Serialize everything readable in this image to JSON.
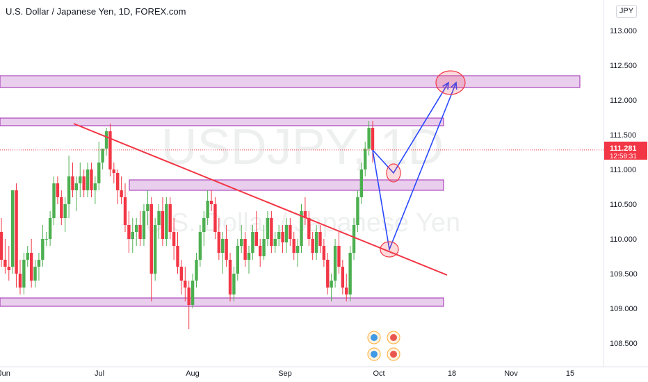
{
  "header": {
    "title": "U.S. Dollar / Japanese Yen, 1D, FOREX.com",
    "currency": "JPY"
  },
  "watermark": {
    "symbol": "USDJPY, 1D",
    "name": "U.S. Dollar / Japanese Yen"
  },
  "price_badge": {
    "price": "111.281",
    "countdown": "12:58:31",
    "color": "#f23645"
  },
  "colors": {
    "up": "#4caf50",
    "down": "#f23645",
    "zone_fill": "#e1bee7",
    "zone_border": "#9c27b0",
    "trendline": "#f23645",
    "projection": "#2948ff"
  },
  "chart_data": {
    "type": "candlestick",
    "title": "U.S. Dollar / Japanese Yen, 1D, FOREX.com",
    "y_ticks": [
      "113.000",
      "112.500",
      "112.000",
      "111.500",
      "111.000",
      "110.500",
      "110.000",
      "109.500",
      "109.000",
      "108.500"
    ],
    "x_ticks": [
      "Jun",
      "Jul",
      "Aug",
      "Sep",
      "Oct",
      "18",
      "Nov",
      "15"
    ],
    "ylim": [
      108.3,
      113.3
    ],
    "last_price": 111.281,
    "candles": [
      [
        110.1,
        110.3,
        109.6,
        109.7
      ],
      [
        109.7,
        110.0,
        109.5,
        109.6
      ],
      [
        109.6,
        109.9,
        109.4,
        109.55
      ],
      [
        109.6,
        110.7,
        109.5,
        110.7
      ],
      [
        110.7,
        110.8,
        109.3,
        109.5
      ],
      [
        109.5,
        109.7,
        109.2,
        109.3
      ],
      [
        109.3,
        109.8,
        109.2,
        109.7
      ],
      [
        109.7,
        109.9,
        109.6,
        109.8
      ],
      [
        109.8,
        110.0,
        109.3,
        109.4
      ],
      [
        109.4,
        109.7,
        109.3,
        109.6
      ],
      [
        109.6,
        109.8,
        109.4,
        109.7
      ],
      [
        109.7,
        110.2,
        109.6,
        110.0
      ],
      [
        110.0,
        110.1,
        109.9,
        110.0
      ],
      [
        110.0,
        110.4,
        109.9,
        110.3
      ],
      [
        110.3,
        110.9,
        110.2,
        110.8
      ],
      [
        110.8,
        110.9,
        110.5,
        110.6
      ],
      [
        110.6,
        110.7,
        110.2,
        110.3
      ],
      [
        110.3,
        110.6,
        110.1,
        110.5
      ],
      [
        110.5,
        111.2,
        110.3,
        110.9
      ],
      [
        110.9,
        111.1,
        110.6,
        110.7
      ],
      [
        110.7,
        110.9,
        110.4,
        110.8
      ],
      [
        110.8,
        111.1,
        110.6,
        110.9
      ],
      [
        110.9,
        111.0,
        110.6,
        110.7
      ],
      [
        110.7,
        111.1,
        110.6,
        111.0
      ],
      [
        111.0,
        111.1,
        110.6,
        110.7
      ],
      [
        110.7,
        110.9,
        110.5,
        110.8
      ],
      [
        110.8,
        111.4,
        110.7,
        111.1
      ],
      [
        111.1,
        111.3,
        111.0,
        111.3
      ],
      [
        111.3,
        111.6,
        111.2,
        111.55
      ],
      [
        111.55,
        111.66,
        110.9,
        111.0
      ],
      [
        111.0,
        111.1,
        110.8,
        110.95
      ],
      [
        110.95,
        111.0,
        110.5,
        110.7
      ],
      [
        110.7,
        110.9,
        110.5,
        110.6
      ],
      [
        110.6,
        110.8,
        110.1,
        110.2
      ],
      [
        110.2,
        110.4,
        109.8,
        110.0
      ],
      [
        110.0,
        110.3,
        109.8,
        110.1
      ],
      [
        110.1,
        110.3,
        109.9,
        110.2
      ],
      [
        110.2,
        110.4,
        109.9,
        110.0
      ],
      [
        110.0,
        110.5,
        109.9,
        110.4
      ],
      [
        110.4,
        110.7,
        110.2,
        110.5
      ],
      [
        110.5,
        110.6,
        109.1,
        109.5
      ],
      [
        109.5,
        110.3,
        109.4,
        110.2
      ],
      [
        110.2,
        110.5,
        110.0,
        110.4
      ],
      [
        110.4,
        110.6,
        109.9,
        110.0
      ],
      [
        110.0,
        110.6,
        109.9,
        110.5
      ],
      [
        110.5,
        110.6,
        110.0,
        110.1
      ],
      [
        110.1,
        110.3,
        109.7,
        109.9
      ],
      [
        109.9,
        110.1,
        109.5,
        109.6
      ],
      [
        109.6,
        109.7,
        109.2,
        109.4
      ],
      [
        109.4,
        109.6,
        109.1,
        109.3
      ],
      [
        109.3,
        109.4,
        108.7,
        109.05
      ],
      [
        109.05,
        109.5,
        109.0,
        109.4
      ],
      [
        109.4,
        109.8,
        109.3,
        109.7
      ],
      [
        109.7,
        110.2,
        109.6,
        110.1
      ],
      [
        110.1,
        110.4,
        109.9,
        110.3
      ],
      [
        110.3,
        110.7,
        110.2,
        110.55
      ],
      [
        110.55,
        110.7,
        110.4,
        110.5
      ],
      [
        110.5,
        110.6,
        110.0,
        110.1
      ],
      [
        110.1,
        110.3,
        109.7,
        109.8
      ],
      [
        109.8,
        110.1,
        109.5,
        110.0
      ],
      [
        110.0,
        110.2,
        109.6,
        109.7
      ],
      [
        109.7,
        109.8,
        109.1,
        109.2
      ],
      [
        109.2,
        109.6,
        109.1,
        109.5
      ],
      [
        109.5,
        110.0,
        109.4,
        109.9
      ],
      [
        109.9,
        110.2,
        109.8,
        110.0
      ],
      [
        110.0,
        110.1,
        109.6,
        109.7
      ],
      [
        109.7,
        109.9,
        109.5,
        109.8
      ],
      [
        109.8,
        110.2,
        109.7,
        110.1
      ],
      [
        110.1,
        110.4,
        109.9,
        109.9
      ],
      [
        109.9,
        110.0,
        109.6,
        109.75
      ],
      [
        109.75,
        110.2,
        109.7,
        110.0
      ],
      [
        110.0,
        110.4,
        109.9,
        110.3
      ],
      [
        110.3,
        110.4,
        109.8,
        109.9
      ],
      [
        109.9,
        110.1,
        109.8,
        110.0
      ],
      [
        110.0,
        110.2,
        109.9,
        110.1
      ],
      [
        110.1,
        110.2,
        109.8,
        109.95
      ],
      [
        109.95,
        110.3,
        109.8,
        110.2
      ],
      [
        110.2,
        110.3,
        109.9,
        110.0
      ],
      [
        110.0,
        110.1,
        109.7,
        109.8
      ],
      [
        109.8,
        110.0,
        109.6,
        109.9
      ],
      [
        109.9,
        110.5,
        109.8,
        110.4
      ],
      [
        110.4,
        110.6,
        110.2,
        110.3
      ],
      [
        110.3,
        110.4,
        109.9,
        110.0
      ],
      [
        110.0,
        110.1,
        109.7,
        109.8
      ],
      [
        109.8,
        110.2,
        109.7,
        110.1
      ],
      [
        110.1,
        110.2,
        109.8,
        109.9
      ],
      [
        109.9,
        110.0,
        109.6,
        109.7
      ],
      [
        109.7,
        109.8,
        109.2,
        109.3
      ],
      [
        109.3,
        109.5,
        109.1,
        109.4
      ],
      [
        109.4,
        110.0,
        109.3,
        109.9
      ],
      [
        109.9,
        110.1,
        109.5,
        109.6
      ],
      [
        109.6,
        109.7,
        109.2,
        109.3
      ],
      [
        109.3,
        109.5,
        109.1,
        109.2
      ],
      [
        109.2,
        109.9,
        109.1,
        109.8
      ],
      [
        109.8,
        110.3,
        109.7,
        110.2
      ],
      [
        110.2,
        110.7,
        110.1,
        110.6
      ],
      [
        110.6,
        111.1,
        110.5,
        111.0
      ],
      [
        111.0,
        111.4,
        110.9,
        111.3
      ],
      [
        111.3,
        111.7,
        111.2,
        111.6
      ],
      [
        111.6,
        111.7,
        111.1,
        111.281
      ]
    ],
    "zones": [
      {
        "top": 112.35,
        "bottom": 112.18,
        "x_start": 0,
        "x_end": 834
      },
      {
        "top": 111.74,
        "bottom": 111.63,
        "x_start": 0,
        "x_end": 638
      },
      {
        "top": 110.85,
        "bottom": 110.7,
        "x_start": 186,
        "x_end": 638
      },
      {
        "top": 109.15,
        "bottom": 109.03,
        "x_start": 0,
        "x_end": 638
      }
    ],
    "trendline": {
      "x1": 106,
      "y1_price": 111.66,
      "x2": 643,
      "y2_price": 109.48
    },
    "projection_path": [
      {
        "x": 536,
        "price": 111.28
      },
      {
        "x": 566,
        "price": 110.95
      },
      {
        "x": 645,
        "price": 112.25
      }
    ],
    "projection_path_2": [
      {
        "x": 536,
        "price": 111.28
      },
      {
        "x": 560,
        "price": 109.85
      },
      {
        "x": 656,
        "price": 112.25
      }
    ],
    "ellipses": [
      {
        "cx": 648,
        "price": 112.25,
        "rx": 21,
        "ry": 17
      },
      {
        "cx": 566,
        "price": 110.95,
        "rx": 10,
        "ry": 13
      },
      {
        "cx": 560,
        "price": 109.85,
        "rx": 13,
        "ry": 11
      }
    ]
  }
}
